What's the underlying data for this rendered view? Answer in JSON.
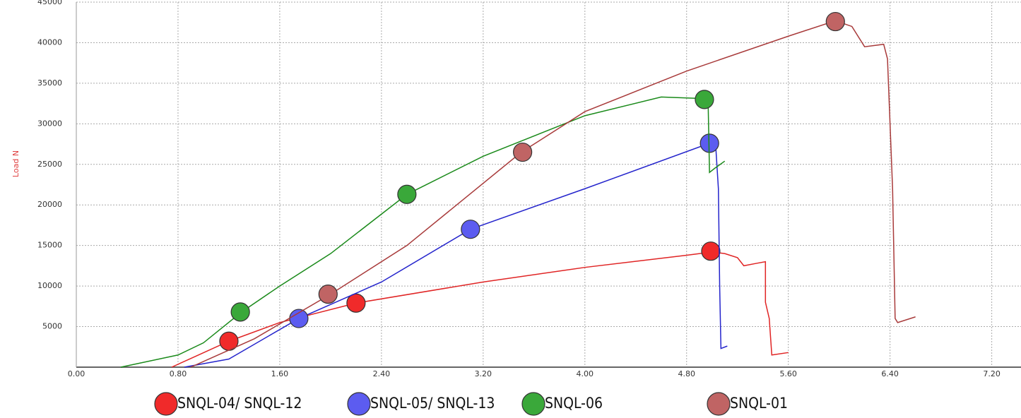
{
  "chart_data": {
    "type": "line",
    "y_label": "Load N",
    "xlim": [
      0,
      7.43
    ],
    "ylim": [
      0,
      45000
    ],
    "xticks": [
      {
        "value": 0,
        "label": "0.00"
      },
      {
        "value": 0.8,
        "label": "0.80"
      },
      {
        "value": 1.6,
        "label": "1.60"
      },
      {
        "value": 2.4,
        "label": "2.40"
      },
      {
        "value": 3.2,
        "label": "3.20"
      },
      {
        "value": 4.0,
        "label": "4.00"
      },
      {
        "value": 4.8,
        "label": "4.80"
      },
      {
        "value": 5.6,
        "label": "5.60"
      },
      {
        "value": 6.4,
        "label": "6.40"
      },
      {
        "value": 7.2,
        "label": "7.20"
      }
    ],
    "yticks": [
      5000,
      10000,
      15000,
      20000,
      25000,
      30000,
      35000,
      40000,
      45000
    ],
    "grid": true,
    "series": [
      {
        "name": "SNQL-04/ SNQL-12",
        "color": "#e02424",
        "marker_color": "#f02a2a",
        "x": [
          0.75,
          1.2,
          1.6,
          2.2,
          3.2,
          4.0,
          4.8,
          5.0,
          5.1,
          5.2,
          5.25,
          5.35,
          5.42,
          5.42,
          5.45,
          5.47,
          5.6
        ],
        "values": [
          0,
          3200,
          5500,
          7900,
          10500,
          12300,
          13800,
          14200,
          14000,
          13500,
          12500,
          12800,
          13000,
          8000,
          6000,
          1500,
          1800
        ],
        "marker_x": [
          1.2,
          2.2,
          4.99
        ],
        "marker_values": [
          3200,
          7900,
          14300
        ]
      },
      {
        "name": "SNQL-05/ SNQL-13",
        "color": "#2424cc",
        "marker_color": "#5c5cf0",
        "x": [
          0.85,
          1.2,
          1.75,
          2.4,
          3.1,
          4.0,
          4.98,
          5.03,
          5.05,
          5.06,
          5.07,
          5.12
        ],
        "values": [
          0,
          1000,
          6000,
          10500,
          17000,
          22000,
          27600,
          27000,
          22000,
          10000,
          2300,
          2600
        ],
        "marker_x": [
          1.75,
          3.1,
          4.98
        ],
        "marker_values": [
          6000,
          17000,
          27600
        ]
      },
      {
        "name": "SNQL-06",
        "color": "#1a8a1a",
        "marker_color": "#3aa83a",
        "x": [
          0.35,
          0.8,
          1.0,
          1.3,
          1.6,
          2.0,
          2.6,
          3.2,
          4.0,
          4.6,
          4.95,
          4.97,
          4.98,
          5.02,
          5.1
        ],
        "values": [
          0,
          1500,
          3000,
          6800,
          10000,
          14000,
          21300,
          26000,
          31000,
          33300,
          33100,
          32000,
          24000,
          24500,
          25400
        ],
        "marker_x": [
          1.29,
          2.6,
          4.94
        ],
        "marker_values": [
          6800,
          21300,
          33000
        ]
      },
      {
        "name": "SNQL-01",
        "color": "#a83a3a",
        "marker_color": "#c06464",
        "x": [
          0.9,
          1.4,
          2.0,
          2.6,
          3.5,
          4.0,
          4.8,
          5.6,
          5.97,
          6.1,
          6.2,
          6.35,
          6.38,
          6.42,
          6.44,
          6.46,
          6.6
        ],
        "values": [
          0,
          3500,
          9000,
          15000,
          26500,
          31500,
          36500,
          40800,
          42700,
          42000,
          39500,
          39800,
          38000,
          22000,
          6000,
          5500,
          6200
        ],
        "marker_x": [
          1.98,
          3.51,
          5.97
        ],
        "marker_values": [
          9000,
          26500,
          42600
        ]
      }
    ]
  }
}
